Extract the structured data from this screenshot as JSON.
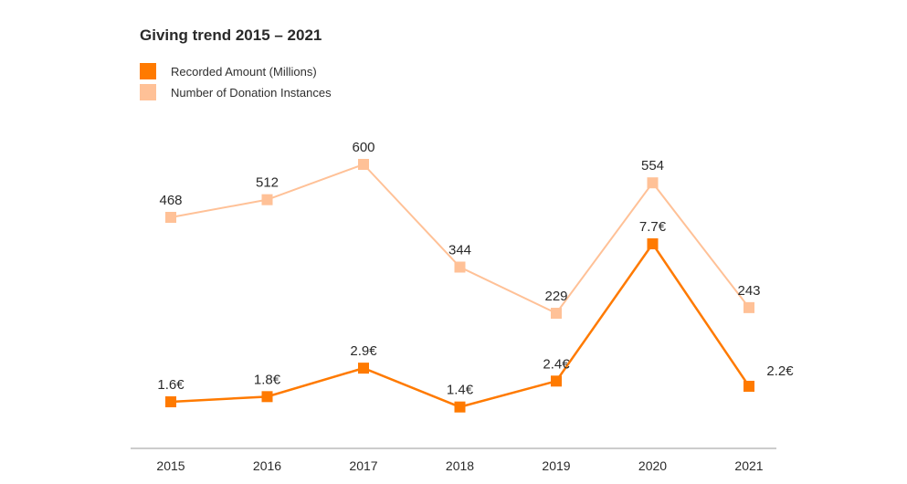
{
  "colors": {
    "amount": "#ff7a00",
    "instances": "#ffc197",
    "axis": "#9a9a9a",
    "text": "#2a2a2a"
  },
  "chart_data": {
    "type": "line",
    "title": "Giving trend 2015 – 2021",
    "categories": [
      "2015",
      "2016",
      "2017",
      "2018",
      "2019",
      "2020",
      "2021"
    ],
    "series": [
      {
        "name": "Recorded Amount (Millions)",
        "values": [
          1.6,
          1.8,
          2.9,
          1.4,
          2.4,
          7.7,
          2.2
        ],
        "labels": [
          "1.6€",
          "1.8€",
          "2.9€",
          "1.4€",
          "2.4€",
          "7.7€",
          "2.2€"
        ],
        "color": "#ff7a00"
      },
      {
        "name": "Number of Donation Instances",
        "values": [
          468,
          512,
          600,
          344,
          229,
          554,
          243
        ],
        "labels": [
          "468",
          "512",
          "600",
          "344",
          "229",
          "554",
          "243"
        ],
        "color": "#ffc197"
      }
    ],
    "legend": "top-left",
    "grid": false
  }
}
